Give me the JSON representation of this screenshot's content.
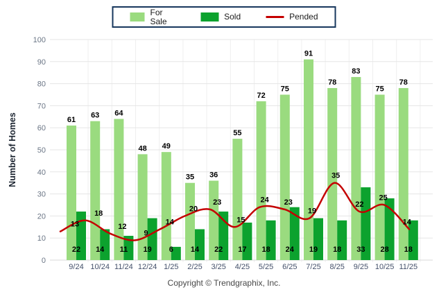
{
  "legend": {
    "items": [
      {
        "label": "For Sale",
        "color": "#9ADB7F",
        "swatch": "box"
      },
      {
        "label": "Sold",
        "color": "#0CA22E",
        "swatch": "box"
      },
      {
        "label": "Pended",
        "color": "#C40000",
        "swatch": "line"
      }
    ]
  },
  "yaxis": {
    "title": "Number of Homes"
  },
  "footer": {
    "copyright": "Copyright © Trendgraphix, Inc."
  },
  "chart_data": {
    "type": "bar",
    "categories": [
      "9/24",
      "10/24",
      "11/24",
      "12/24",
      "1/25",
      "2/25",
      "3/25",
      "4/25",
      "5/25",
      "6/25",
      "7/25",
      "8/25",
      "9/25",
      "10/25",
      "11/25"
    ],
    "series": [
      {
        "name": "For Sale",
        "type": "bar",
        "color": "#9ADB7F",
        "values": [
          61,
          63,
          64,
          48,
          49,
          35,
          36,
          55,
          72,
          75,
          91,
          78,
          83,
          75,
          78
        ]
      },
      {
        "name": "Sold",
        "type": "bar",
        "color": "#0CA22E",
        "values": [
          22,
          14,
          11,
          19,
          6,
          14,
          22,
          17,
          18,
          24,
          19,
          18,
          33,
          28,
          18
        ]
      },
      {
        "name": "Pended",
        "type": "line",
        "color": "#C40000",
        "values": [
          13,
          18,
          12,
          9,
          14,
          20,
          23,
          15,
          24,
          23,
          19,
          35,
          22,
          25,
          14
        ]
      }
    ],
    "title": "",
    "xlabel": "",
    "ylabel": "Number of Homes",
    "ylim": [
      0,
      100
    ],
    "ytick_step": 10,
    "grid": true,
    "legend_position": "top"
  }
}
